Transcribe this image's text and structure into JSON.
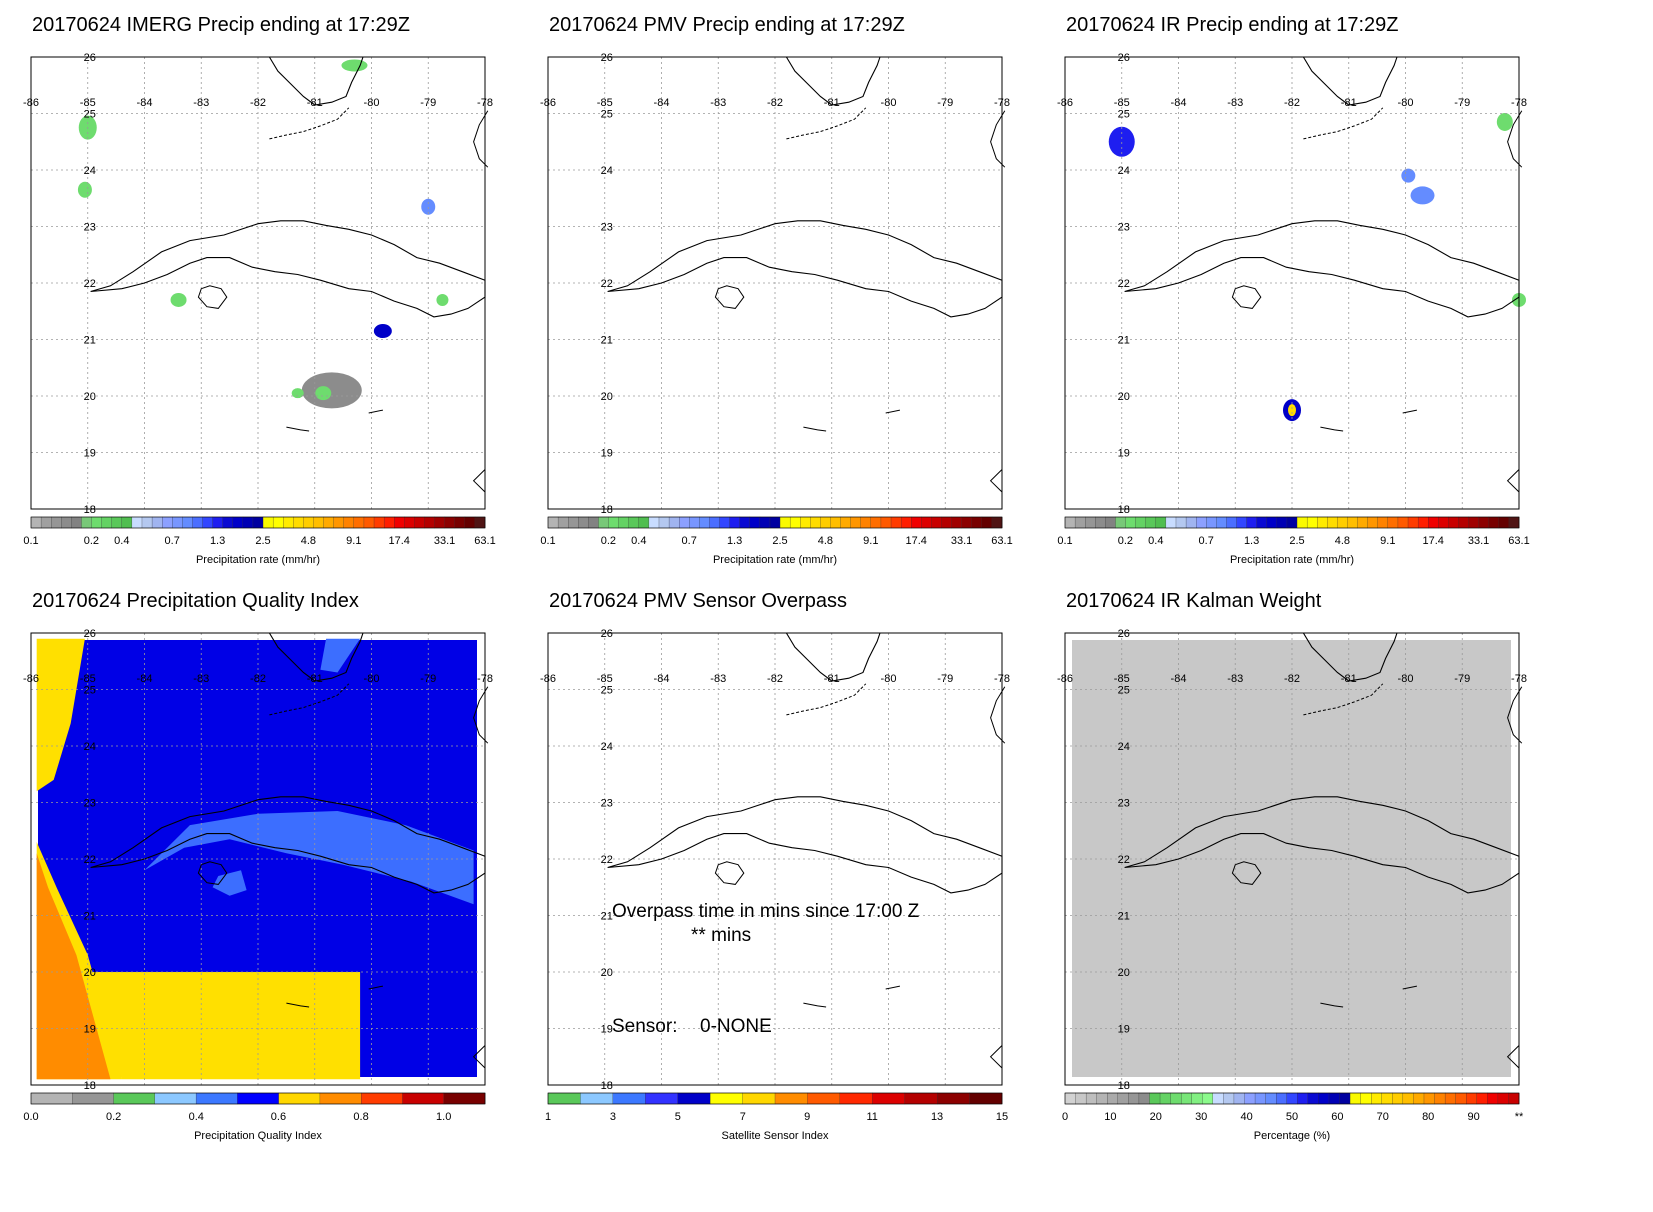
{
  "panels": [
    {
      "id": "imerg",
      "title": "20170624 IMERG Precip ending at 17:29Z",
      "bg": "none",
      "cbar": "precip",
      "cbar_label": "Precipitation rate (mm/hr)"
    },
    {
      "id": "pmv",
      "title": "20170624 PMV Precip ending at 17:29Z",
      "bg": "none",
      "cbar": "precip",
      "cbar_label": "Precipitation rate (mm/hr)"
    },
    {
      "id": "ir",
      "title": "20170624 IR Precip ending at 17:29Z",
      "bg": "none",
      "cbar": "precip",
      "cbar_label": "Precipitation rate (mm/hr)"
    },
    {
      "id": "pqi",
      "title": "20170624 Precipitation Quality Index",
      "bg": "pqi",
      "cbar": "quality",
      "cbar_label": "Precipitation Quality Index"
    },
    {
      "id": "overpass",
      "title": "20170624 PMV Sensor Overpass",
      "bg": "none",
      "cbar": "sensor",
      "cbar_label": "Satellite Sensor Index"
    },
    {
      "id": "kalman",
      "title": "20170624 IR Kalman Weight",
      "bg": "gray",
      "cbar": "percent",
      "cbar_label": "Percentage (%)"
    }
  ],
  "map": {
    "lon_labels": [
      "-86",
      "-85",
      "-84",
      "-83",
      "-82",
      "-81",
      "-80",
      "-79",
      "-78"
    ],
    "lat_labels": [
      "26",
      "25",
      "24",
      "23",
      "22",
      "21",
      "20",
      "19",
      "18"
    ]
  },
  "colorbars": {
    "precip": {
      "colors": [
        "#b4b4b4",
        "#a0a0a0",
        "#969696",
        "#8c8c8c",
        "#828282",
        "#78c878",
        "#6edc6e",
        "#64d264",
        "#5ac85a",
        "#50be50",
        "#c8dcff",
        "#b4c8f0",
        "#a0b4f0",
        "#8ca0ff",
        "#7896ff",
        "#648cff",
        "#4b6eff",
        "#3246ff",
        "#1e1ef0",
        "#0a0ad2",
        "#0000c8",
        "#0000b4",
        "#0000a0",
        "#fafa00",
        "#ffff00",
        "#ffeb00",
        "#ffdc00",
        "#ffcd00",
        "#ffbe00",
        "#ffaa00",
        "#ff9600",
        "#ff8200",
        "#ff6e00",
        "#ff5a00",
        "#ff3c00",
        "#ff1e00",
        "#f00000",
        "#dc0000",
        "#c80000",
        "#b40000",
        "#a00000",
        "#8c0000",
        "#780000",
        "#640000",
        "#501414"
      ],
      "ticks": [
        {
          "label": "0.1",
          "pos": 0
        },
        {
          "label": "0.2",
          "pos": 0.133
        },
        {
          "label": "0.4",
          "pos": 0.2
        },
        {
          "label": "0.7",
          "pos": 0.311
        },
        {
          "label": "1.3",
          "pos": 0.411
        },
        {
          "label": "2.5",
          "pos": 0.511
        },
        {
          "label": "4.8",
          "pos": 0.611
        },
        {
          "label": "9.1",
          "pos": 0.711
        },
        {
          "label": "17.4",
          "pos": 0.811
        },
        {
          "label": "33.1",
          "pos": 0.911
        },
        {
          "label": "63.1",
          "pos": 1
        }
      ]
    },
    "quality": {
      "colors": [
        "#b4b4b4",
        "#969696",
        "#5ac85a",
        "#8cc8ff",
        "#3c78ff",
        "#0000ff",
        "#ffd700",
        "#ff8c00",
        "#ff3c00",
        "#c80000",
        "#780000"
      ],
      "ticks": [
        {
          "label": "0.0",
          "pos": 0
        },
        {
          "label": "0.2",
          "pos": 0.182
        },
        {
          "label": "0.4",
          "pos": 0.364
        },
        {
          "label": "0.6",
          "pos": 0.545
        },
        {
          "label": "0.8",
          "pos": 0.727
        },
        {
          "label": "1.0",
          "pos": 0.909
        }
      ]
    },
    "sensor": {
      "colors": [
        "#5ac85a",
        "#8cc8ff",
        "#3c78ff",
        "#3232ff",
        "#0000c8",
        "#ffff00",
        "#ffd700",
        "#ff8c00",
        "#ff5a00",
        "#ff2800",
        "#dc0000",
        "#b40000",
        "#8c0000",
        "#640000"
      ],
      "ticks": [
        {
          "label": "1",
          "pos": 0
        },
        {
          "label": "3",
          "pos": 0.143
        },
        {
          "label": "5",
          "pos": 0.286
        },
        {
          "label": "7",
          "pos": 0.429
        },
        {
          "label": "9",
          "pos": 0.571
        },
        {
          "label": "11",
          "pos": 0.714
        },
        {
          "label": "13",
          "pos": 0.857
        },
        {
          "label": "15",
          "pos": 1
        }
      ]
    },
    "percent": {
      "colors": [
        "#d2d2d2",
        "#c8c8c8",
        "#bebebe",
        "#b4b4b4",
        "#aaaaaa",
        "#a0a0a0",
        "#969696",
        "#8c8c8c",
        "#5ac85a",
        "#64d264",
        "#6edc6e",
        "#78e678",
        "#82f082",
        "#8cfa8c",
        "#c8dcff",
        "#b4c8f0",
        "#a0b4f0",
        "#8ca0ff",
        "#7896ff",
        "#648cff",
        "#4b6eff",
        "#3246ff",
        "#1e1ef0",
        "#0a0ad2",
        "#0000c8",
        "#0000b4",
        "#0000a0",
        "#fafa00",
        "#ffff00",
        "#ffeb00",
        "#ffdc00",
        "#ffcd00",
        "#ffbe00",
        "#ffaa00",
        "#ff9600",
        "#ff8200",
        "#ff6e00",
        "#ff5a00",
        "#ff3c00",
        "#ff1e00",
        "#f00000",
        "#dc0000",
        "#c80000"
      ],
      "ticks": [
        {
          "label": "0",
          "pos": 0
        },
        {
          "label": "10",
          "pos": 0.1
        },
        {
          "label": "20",
          "pos": 0.2
        },
        {
          "label": "30",
          "pos": 0.3
        },
        {
          "label": "40",
          "pos": 0.4
        },
        {
          "label": "50",
          "pos": 0.5
        },
        {
          "label": "60",
          "pos": 0.6
        },
        {
          "label": "70",
          "pos": 0.7
        },
        {
          "label": "80",
          "pos": 0.8
        },
        {
          "label": "90",
          "pos": 0.9
        },
        {
          "label": "**",
          "pos": 1
        }
      ]
    }
  },
  "overpass_text": {
    "line1": "Overpass time in mins since 17:00 Z",
    "line2": "** mins",
    "sensor_label": "Sensor:",
    "sensor_value": "0-NONE"
  }
}
